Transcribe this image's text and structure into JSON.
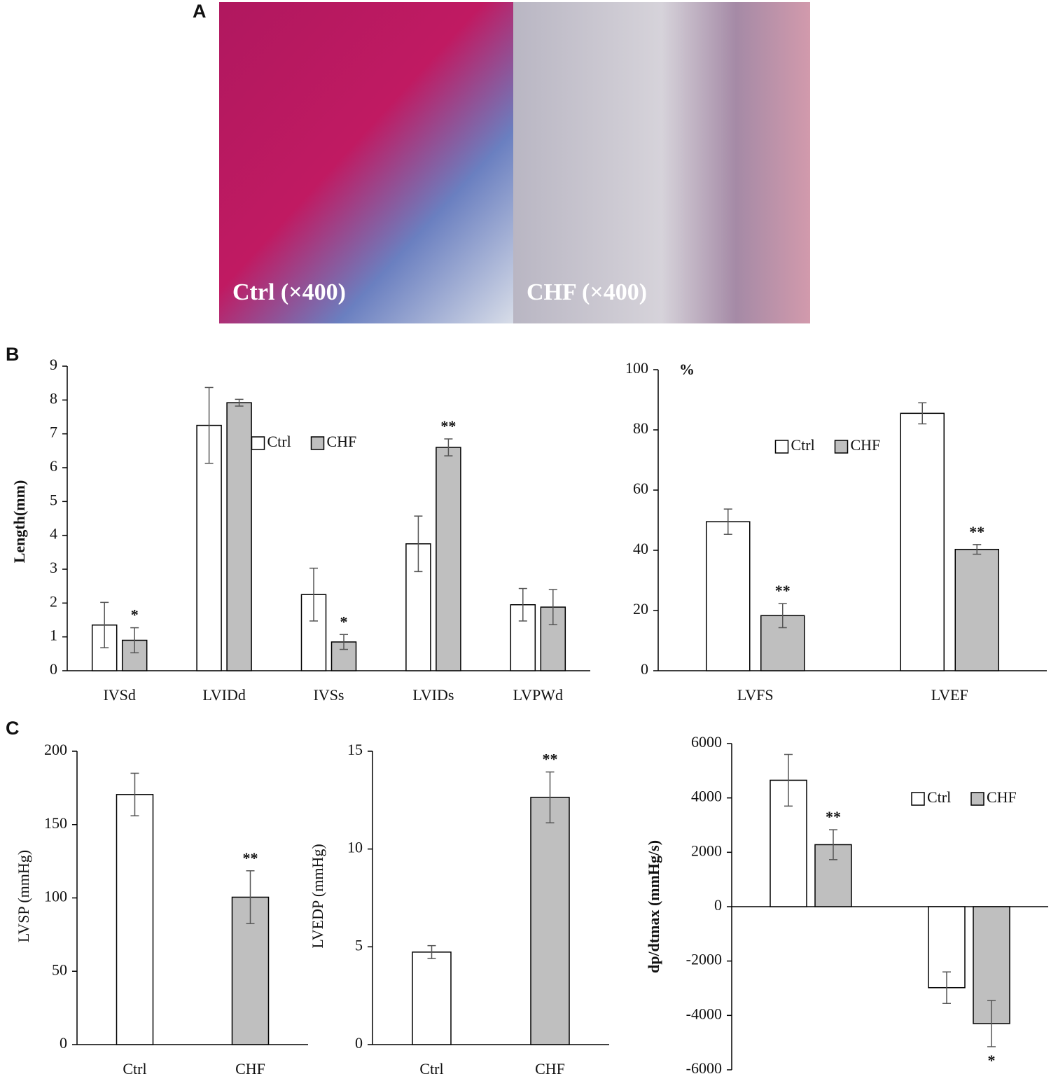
{
  "panels": [
    "A",
    "B",
    "C"
  ],
  "image": {
    "labels": [
      "Ctrl (×400)",
      "CHF (×400)"
    ]
  },
  "chart_data": [
    {
      "type": "bar",
      "ylabel": "Length(mm)",
      "categories": [
        "IVSd",
        "LVIDd",
        "IVSs",
        "LVIDs",
        "LVPWd"
      ],
      "series": [
        {
          "name": "Ctrl",
          "color": "#ffffff",
          "values": [
            1.35,
            7.25,
            2.25,
            3.75,
            1.95
          ],
          "errors": [
            0.67,
            1.12,
            0.78,
            0.82,
            0.48
          ],
          "markers": [
            null,
            null,
            null,
            null,
            null
          ]
        },
        {
          "name": "CHF",
          "color": "#bfbfbf",
          "values": [
            0.9,
            7.92,
            0.85,
            6.6,
            1.88
          ],
          "errors": [
            0.37,
            0.1,
            0.22,
            0.25,
            0.52
          ],
          "markers": [
            "*",
            null,
            "*",
            "**",
            null
          ]
        }
      ],
      "ylim": [
        0,
        9
      ],
      "yticks": [
        0,
        1,
        2,
        3,
        4,
        5,
        6,
        7,
        8,
        9
      ],
      "legend": "top-center"
    },
    {
      "type": "bar",
      "ylabel": "%",
      "categories": [
        "LVFS",
        "LVEF"
      ],
      "series": [
        {
          "name": "Ctrl",
          "color": "#ffffff",
          "values": [
            49.5,
            85.5
          ],
          "errors": [
            4.2,
            3.5
          ],
          "markers": [
            null,
            null
          ]
        },
        {
          "name": "CHF",
          "color": "#bfbfbf",
          "values": [
            18.3,
            40.3
          ],
          "errors": [
            4,
            1.6
          ],
          "markers": [
            "**",
            "**"
          ]
        }
      ],
      "ylim": [
        0,
        100
      ],
      "yticks": [
        0,
        20,
        40,
        60,
        80,
        100
      ],
      "legend": "top-center"
    },
    {
      "type": "bar",
      "ylabel": "LVSP (mmHg)",
      "categories": [
        "Ctrl",
        "CHF"
      ],
      "values": [
        170.5,
        100.5
      ],
      "errors": [
        14.5,
        18
      ],
      "colors": [
        "#ffffff",
        "#bfbfbf"
      ],
      "markers": [
        null,
        "**"
      ],
      "ylim": [
        0,
        200
      ],
      "yticks": [
        0,
        50,
        100,
        150,
        200
      ]
    },
    {
      "type": "bar",
      "ylabel": "LVEDP (mmHg)",
      "categories": [
        "Ctrl",
        "CHF"
      ],
      "values": [
        4.73,
        12.64
      ],
      "errors": [
        0.33,
        1.3
      ],
      "colors": [
        "#ffffff",
        "#bfbfbf"
      ],
      "markers": [
        null,
        "**"
      ],
      "ylim": [
        0,
        15
      ],
      "yticks": [
        0,
        5,
        10,
        15
      ]
    },
    {
      "type": "bar",
      "ylabel": "dp/dtmax (mmHg/s)",
      "categories": [
        null,
        null
      ],
      "series": [
        {
          "name": "Ctrl",
          "color": "#ffffff",
          "values": [
            4650,
            -2980
          ],
          "errors": [
            950,
            580
          ],
          "markers": [
            null,
            null
          ]
        },
        {
          "name": "CHF",
          "color": "#bfbfbf",
          "values": [
            2280,
            -4300
          ],
          "errors": [
            550,
            850
          ],
          "markers": [
            "**",
            "*"
          ]
        }
      ],
      "ylim": [
        -6000,
        6000
      ],
      "yticks": [
        -6000,
        -4000,
        -2000,
        0,
        2000,
        4000,
        6000
      ],
      "legend": "top-right"
    }
  ]
}
